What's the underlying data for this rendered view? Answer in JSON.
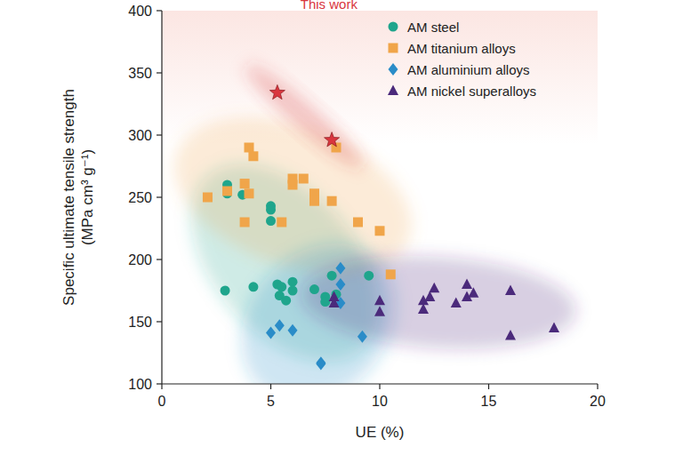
{
  "chart_data": {
    "type": "scatter",
    "x_label": "UE (%)",
    "y_label": [
      "Specific ultimate tensile strength",
      "(MPa cm³ g⁻¹)"
    ],
    "xlim": [
      0,
      20
    ],
    "xticks": [
      0,
      5,
      10,
      15,
      20
    ],
    "ylim": [
      100,
      400
    ],
    "yticks": [
      100,
      150,
      200,
      250,
      300,
      350,
      400
    ],
    "grid": false,
    "legend": "upper right",
    "series": [
      {
        "name": "AM steel",
        "color": "#1fa58c",
        "marker": "circle",
        "x": [
          2.9,
          3,
          3,
          3.7,
          4.2,
          5,
          5,
          5,
          5.3,
          5.4,
          5.5,
          5.7,
          6,
          6,
          7,
          7.5,
          7.5,
          7.8,
          8,
          9.5
        ],
        "values": [
          175,
          260,
          253,
          252,
          178,
          243,
          240,
          231,
          180,
          171,
          178,
          167,
          182,
          175,
          176,
          170,
          166,
          187,
          172,
          187
        ]
      },
      {
        "name": "AM titanium alloys",
        "color": "#f0a54a",
        "marker": "square",
        "x": [
          2.1,
          3,
          3.8,
          3.8,
          4,
          4.2,
          4,
          5.5,
          6,
          6,
          6.5,
          7,
          7,
          7.8,
          8,
          9,
          10,
          10.5
        ],
        "values": [
          250,
          255,
          261,
          230,
          290,
          283,
          253,
          230,
          265,
          260,
          265,
          253,
          247,
          247,
          290,
          230,
          223,
          188
        ]
      },
      {
        "name": "AM aluminium alloys",
        "color": "#2a8cc8",
        "marker": "diamond",
        "x": [
          5,
          5.4,
          6,
          7.3,
          7.3,
          8.2,
          8.2,
          8.2,
          9.2
        ],
        "values": [
          141,
          147,
          143,
          117,
          116,
          193,
          180,
          165,
          138
        ]
      },
      {
        "name": "AM nickel superalloys",
        "color": "#4b2a7b",
        "marker": "triangle",
        "x": [
          7.9,
          7.9,
          10,
          10,
          12,
          12,
          12.3,
          12.5,
          13.5,
          14,
          14,
          14.3,
          16,
          16,
          18
        ],
        "values": [
          170,
          165,
          167,
          158,
          167,
          160,
          170,
          177,
          165,
          180,
          170,
          173,
          175,
          139,
          145
        ]
      },
      {
        "name": "This work",
        "color": "#d9363e",
        "marker": "star",
        "x": [
          5.3,
          7.8
        ],
        "values": [
          334,
          296
        ]
      }
    ]
  }
}
